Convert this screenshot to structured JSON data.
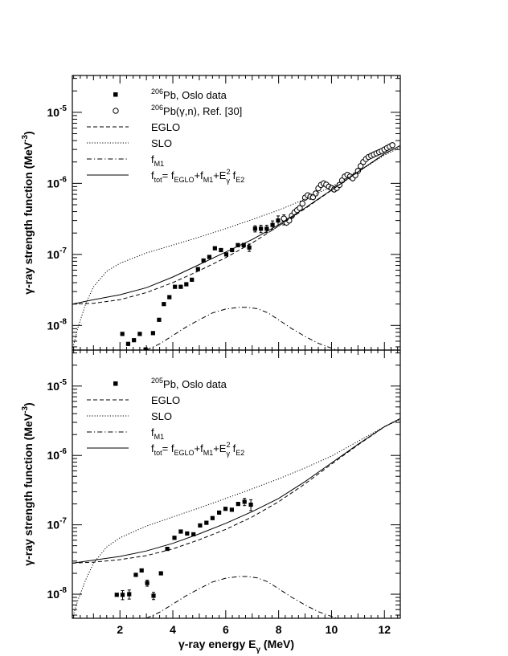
{
  "chart_data": [
    {
      "type": "scatter",
      "panel": "top",
      "ylabel_main": "γ-ray strength function (MeV",
      "ylabel_sup": "-3",
      "ylabel_close": ")",
      "xlim": [
        0.2,
        12.6
      ],
      "ylim": [
        4.5e-09,
        3.3e-05
      ],
      "yscale": "log",
      "legend": [
        {
          "key": "data",
          "sup": "206",
          "text": "Pb, Oslo data"
        },
        {
          "key": "ref",
          "sup": "206",
          "text": "Pb(γ,n), Ref. [30]"
        },
        {
          "key": "eglo",
          "text": "EGLO"
        },
        {
          "key": "slo",
          "text": "SLO"
        },
        {
          "key": "m1",
          "text": "f",
          "sub": "M1"
        },
        {
          "key": "tot",
          "text": "f",
          "sub": "tot",
          "formula": "= f",
          "sub2": "EGLO",
          "mid": "+f",
          "sub3": "M1",
          "mid2": "+E",
          "sup2": "2",
          "sub4": "γ",
          "tail": " f",
          "sub5": "E2"
        }
      ],
      "series": [
        {
          "name": "206Pb, Oslo data",
          "style": "square",
          "x": [
            2.09,
            2.31,
            2.53,
            2.75,
            2.97,
            3.25,
            3.48,
            3.66,
            3.87,
            4.08,
            4.3,
            4.51,
            4.72,
            4.95,
            5.16,
            5.38,
            5.59,
            5.82,
            6.02,
            6.24,
            6.46,
            6.68,
            6.89,
            7.11,
            7.33,
            7.55,
            7.77,
            7.98,
            8.2
          ],
          "y": [
            7.6e-09,
            5.5e-09,
            6.2e-09,
            7.6e-09,
            4.6e-09,
            7.8e-09,
            1.2e-08,
            2e-08,
            2.5e-08,
            3.5e-08,
            3.5e-08,
            3.8e-08,
            4.4e-08,
            6.2e-08,
            8.2e-08,
            9.2e-08,
            1.22e-07,
            1.15e-07,
            1e-07,
            1.15e-07,
            1.35e-07,
            1.35e-07,
            1.25e-07,
            2.3e-07,
            2.3e-07,
            2.3e-07,
            2.6e-07,
            3e-07,
            3.1e-07
          ],
          "yerr_frac": [
            0,
            0,
            0,
            0,
            0,
            0,
            0,
            0,
            0,
            0,
            0,
            0,
            0,
            0,
            0,
            0,
            0,
            0,
            0,
            0,
            0.05,
            0.06,
            0.12,
            0.1,
            0.12,
            0.12,
            0.14,
            0.16,
            0.16
          ]
        },
        {
          "name": "206Pb(γ,n), Ref. [30]",
          "style": "circle",
          "x": [
            8.2,
            8.3,
            8.4,
            8.5,
            8.6,
            8.7,
            8.8,
            8.9,
            9.0,
            9.1,
            9.2,
            9.3,
            9.4,
            9.5,
            9.6,
            9.7,
            9.8,
            9.9,
            10.0,
            10.1,
            10.2,
            10.3,
            10.4,
            10.5,
            10.6,
            10.7,
            10.8,
            10.9,
            11.0,
            11.1,
            11.2,
            11.3,
            11.4,
            11.5,
            11.6,
            11.7,
            11.8,
            11.9,
            12.0,
            12.1,
            12.2,
            12.3
          ],
          "y": [
            3.2e-07,
            2.8e-07,
            3e-07,
            3.5e-07,
            3.9e-07,
            4.2e-07,
            4.5e-07,
            5.2e-07,
            6.3e-07,
            6.8e-07,
            6.5e-07,
            6.4e-07,
            7.2e-07,
            8.5e-07,
            9.5e-07,
            1e-06,
            9.6e-07,
            9e-07,
            8.6e-07,
            8.2e-07,
            8.6e-07,
            9.5e-07,
            1.1e-06,
            1.25e-06,
            1.32e-06,
            1.25e-06,
            1.18e-06,
            1.3e-06,
            1.5e-06,
            1.75e-06,
            2e-06,
            2.2e-06,
            2.35e-06,
            2.45e-06,
            2.55e-06,
            2.65e-06,
            2.75e-06,
            2.85e-06,
            3e-06,
            3.15e-06,
            3.3e-06,
            3.45e-06
          ]
        },
        {
          "name": "EGLO",
          "style": "dashed",
          "x": [
            0.2,
            1,
            2,
            3,
            4,
            5,
            6,
            7,
            8,
            9,
            10,
            11,
            12,
            12.6
          ],
          "y": [
            2e-08,
            2.05e-08,
            2.3e-08,
            2.9e-08,
            4e-08,
            5.9e-08,
            9e-08,
            1.45e-07,
            2.5e-07,
            4.4e-07,
            8e-07,
            1.45e-06,
            2.6e-06,
            3.4e-06
          ]
        },
        {
          "name": "SLO",
          "style": "dotted",
          "x": [
            0.2,
            0.4,
            0.7,
            1,
            1.5,
            2,
            3,
            4,
            5,
            6,
            7,
            8,
            9,
            10,
            11,
            12,
            12.6
          ],
          "y": [
            4.5e-09,
            9e-09,
            2e-08,
            3.5e-08,
            5.8e-08,
            7.5e-08,
            1.05e-07,
            1.35e-07,
            1.75e-07,
            2.3e-07,
            3.1e-07,
            4.2e-07,
            6e-07,
            9e-07,
            1.45e-06,
            2.5e-06,
            3.2e-06
          ]
        },
        {
          "name": "fM1",
          "style": "dashdot",
          "x": [
            3.0,
            3.5,
            4,
            4.5,
            5,
            5.5,
            6,
            6.5,
            6.8,
            7.2,
            7.6,
            8,
            8.5,
            9,
            9.5,
            10.2
          ],
          "y": [
            4.5e-09,
            5.5e-09,
            7.2e-09,
            9.5e-09,
            1.2e-08,
            1.5e-08,
            1.7e-08,
            1.8e-08,
            1.8e-08,
            1.72e-08,
            1.5e-08,
            1.2e-08,
            9e-09,
            7e-09,
            5.6e-09,
            4.5e-09
          ]
        },
        {
          "name": "ftot",
          "style": "solid",
          "x": [
            0.2,
            1,
            2,
            3,
            4,
            5,
            6,
            7,
            8,
            9,
            10,
            11,
            12,
            12.6
          ],
          "y": [
            2e-08,
            2.3e-08,
            2.7e-08,
            3.4e-08,
            4.8e-08,
            7.2e-08,
            1.08e-07,
            1.62e-07,
            2.6e-07,
            4.5e-07,
            8.1e-07,
            1.45e-06,
            2.6e-06,
            3.4e-06
          ]
        }
      ]
    },
    {
      "type": "scatter",
      "panel": "bottom",
      "xlabel_main": "γ-ray energy E",
      "xlabel_sub": "γ",
      "xlabel_unit": " (MeV)",
      "ylabel_main": "γ-ray strength function (MeV",
      "ylabel_sup": "-3",
      "ylabel_close": ")",
      "xlim": [
        0.2,
        12.6
      ],
      "ylim": [
        4.5e-09,
        3.3e-05
      ],
      "yscale": "log",
      "xticks": [
        2,
        4,
        6,
        8,
        10,
        12
      ],
      "legend": [
        {
          "key": "data",
          "sup": "205",
          "text": "Pb, Oslo data"
        },
        {
          "key": "eglo",
          "text": "EGLO"
        },
        {
          "key": "slo",
          "text": "SLO"
        },
        {
          "key": "m1",
          "text": "f",
          "sub": "M1"
        },
        {
          "key": "tot",
          "text": "f",
          "sub": "tot",
          "formula": "= f",
          "sub2": "EGLO",
          "mid": "+f",
          "sub3": "M1",
          "mid2": "+E",
          "sup2": "2",
          "sub4": "γ",
          "tail": " f",
          "sub5": "E2"
        }
      ],
      "series": [
        {
          "name": "205Pb, Oslo data",
          "style": "square",
          "x": [
            1.88,
            2.1,
            2.35,
            2.6,
            2.82,
            3.03,
            3.27,
            3.55,
            3.79,
            4.06,
            4.3,
            4.54,
            4.78,
            5.03,
            5.27,
            5.5,
            5.75,
            5.99,
            6.23,
            6.47,
            6.71,
            6.95
          ],
          "y": [
            9.8e-09,
            9.8e-09,
            1e-08,
            1.9e-08,
            2.2e-08,
            1.45e-08,
            9.5e-09,
            2e-08,
            4.5e-08,
            6.5e-08,
            8e-08,
            7.5e-08,
            7.3e-08,
            9.8e-08,
            1.07e-07,
            1.25e-07,
            1.5e-07,
            1.7e-07,
            1.65e-07,
            2e-07,
            2.15e-07,
            1.95e-07
          ],
          "yerr_frac": [
            0,
            0.15,
            0.15,
            0,
            0,
            0.1,
            0.12,
            0,
            0,
            0,
            0,
            0,
            0,
            0,
            0,
            0,
            0,
            0,
            0,
            0,
            0.12,
            0.18
          ]
        },
        {
          "name": "EGLO",
          "style": "dashed",
          "x": [
            0.2,
            1,
            2,
            3,
            4,
            5,
            6,
            7,
            8,
            9,
            10,
            11,
            12,
            12.6
          ],
          "y": [
            2.8e-08,
            2.9e-08,
            3.15e-08,
            3.6e-08,
            4.5e-08,
            6.1e-08,
            8.6e-08,
            1.3e-07,
            2.15e-07,
            3.9e-07,
            7.5e-07,
            1.42e-06,
            2.6e-06,
            3.4e-06
          ]
        },
        {
          "name": "SLO",
          "style": "dotted",
          "x": [
            0.2,
            0.4,
            0.7,
            1,
            1.5,
            2,
            3,
            4,
            5,
            6,
            7,
            8,
            9,
            10,
            11,
            12,
            12.6
          ],
          "y": [
            4.5e-09,
            8e-09,
            1.6e-08,
            2.8e-08,
            4.8e-08,
            6.5e-08,
            9.6e-08,
            1.3e-07,
            1.75e-07,
            2.4e-07,
            3.3e-07,
            4.6e-07,
            6.6e-07,
            9.8e-07,
            1.6e-06,
            2.6e-06,
            3.3e-06
          ]
        },
        {
          "name": "fM1",
          "style": "dashdot",
          "x": [
            3.0,
            3.5,
            4,
            4.5,
            5,
            5.5,
            6,
            6.5,
            6.8,
            7.2,
            7.6,
            8,
            8.5,
            9,
            9.5,
            10.2
          ],
          "y": [
            4.5e-09,
            5.5e-09,
            7.2e-09,
            9.5e-09,
            1.2e-08,
            1.5e-08,
            1.7e-08,
            1.8e-08,
            1.8e-08,
            1.72e-08,
            1.5e-08,
            1.2e-08,
            9e-09,
            7e-09,
            5.6e-09,
            4.5e-09
          ]
        },
        {
          "name": "ftot",
          "style": "solid",
          "x": [
            0.2,
            1,
            2,
            3,
            4,
            5,
            6,
            7,
            8,
            9,
            10,
            11,
            12,
            12.6
          ],
          "y": [
            2.8e-08,
            3.1e-08,
            3.5e-08,
            4.2e-08,
            5.4e-08,
            7.4e-08,
            1.05e-07,
            1.55e-07,
            2.4e-07,
            4.2e-07,
            7.8e-07,
            1.45e-06,
            2.6e-06,
            3.4e-06
          ]
        }
      ]
    }
  ]
}
